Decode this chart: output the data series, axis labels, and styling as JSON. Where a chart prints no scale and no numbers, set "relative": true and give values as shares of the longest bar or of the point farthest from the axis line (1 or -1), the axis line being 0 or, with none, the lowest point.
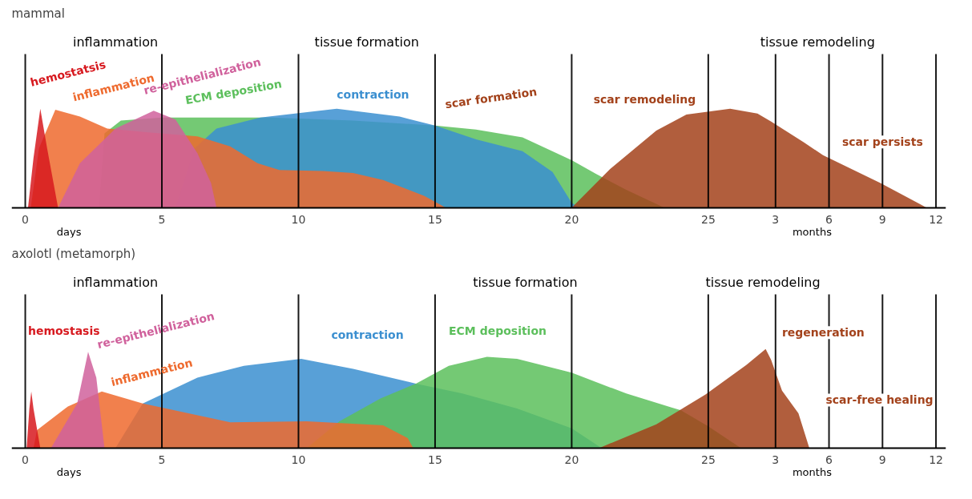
{
  "chart_data": [
    {
      "type": "area",
      "title": "mammal",
      "relative": true,
      "grid": "x",
      "xlim": [
        -0.5,
        33.7
      ],
      "xticks": [
        0,
        5,
        10,
        15,
        20,
        25
      ],
      "x2lim": [
        -39.85,
        12.56
      ],
      "x2ticks": [
        3,
        6,
        9,
        12
      ],
      "annotations": [
        "inflammation",
        "tissue formation",
        "tissue remodeling",
        "days",
        "months",
        "scar formation",
        "scar  persists"
      ],
      "series": [
        {
          "name": "ECM deposition",
          "color": "#5cbf5c",
          "x": [
            2.7,
            2.9,
            3.5,
            5,
            9,
            12,
            15,
            16.5,
            18.2,
            20,
            20.9,
            22,
            23.4
          ],
          "values": [
            0,
            0.75,
            0.88,
            0.91,
            0.91,
            0.88,
            0.83,
            0.79,
            0.71,
            0.48,
            0.34,
            0.18,
            0
          ]
        },
        {
          "name": "contraction",
          "color": "#3b8fd0",
          "x": [
            5.5,
            6.2,
            7,
            8.6,
            11.4,
            13.7,
            15,
            16.5,
            18.2,
            19.3,
            20,
            20.3
          ],
          "values": [
            0,
            0.6,
            0.8,
            0.91,
            1.0,
            0.92,
            0.83,
            0.69,
            0.57,
            0.36,
            0.05,
            0
          ]
        },
        {
          "name": "inflammation",
          "color": "#ee6a2e",
          "x": [
            0.2,
            0.5,
            1.1,
            2,
            3,
            4.5,
            6.3,
            7.5,
            8.5,
            9.3,
            10.9,
            12,
            13.1,
            14.6,
            15.4
          ],
          "values": [
            0,
            0.6,
            0.99,
            0.92,
            0.8,
            0.76,
            0.72,
            0.62,
            0.45,
            0.38,
            0.37,
            0.35,
            0.28,
            0.12,
            0
          ]
        },
        {
          "name": "re-epithelialization",
          "color": "#d0619c",
          "x": [
            1.2,
            2,
            3.3,
            4.7,
            5.5,
            6.3,
            6.8,
            7.0
          ],
          "values": [
            0,
            0.45,
            0.8,
            0.98,
            0.89,
            0.55,
            0.25,
            0
          ]
        },
        {
          "name": "hemostatsis",
          "color": "#d7191f",
          "x": [
            0.1,
            0.3,
            0.55,
            0.8,
            1.2
          ],
          "values": [
            0,
            0.5,
            1.0,
            0.6,
            0
          ]
        },
        {
          "name": "scar remodeling",
          "color": "#a3421b",
          "x": [
            20,
            21.4,
            23.1,
            24.2,
            25.8,
            26.8,
            27.3,
            28.5,
            29.2,
            31.3,
            33.0
          ],
          "values": [
            0,
            0.39,
            0.78,
            0.94,
            1.0,
            0.95,
            0.87,
            0.66,
            0.53,
            0.25,
            0
          ]
        }
      ]
    },
    {
      "type": "area",
      "title": "axolotl (metamorph)",
      "relative": true,
      "grid": "x",
      "xlim": [
        -0.5,
        33.7
      ],
      "xticks": [
        0,
        5,
        10,
        15,
        20,
        25
      ],
      "x2lim": [
        -39.85,
        12.56
      ],
      "x2ticks": [
        3,
        6,
        9,
        12
      ],
      "annotations": [
        "inflammation",
        "tissue formation",
        "tissue remodeling",
        "days",
        "months",
        "scar-free healing"
      ],
      "series": [
        {
          "name": "contraction",
          "color": "#3b8fd0",
          "x": [
            3.3,
            4.3,
            6.3,
            8,
            10.1,
            12,
            14.3,
            16,
            18,
            20,
            21.1
          ],
          "values": [
            0,
            0.45,
            0.71,
            0.83,
            0.9,
            0.8,
            0.65,
            0.55,
            0.4,
            0.2,
            0
          ]
        },
        {
          "name": "ECM deposition",
          "color": "#5cbf5c",
          "x": [
            10.3,
            11.5,
            13,
            14.3,
            15.5,
            16.9,
            18,
            20,
            22,
            24,
            25,
            26.2
          ],
          "values": [
            0,
            0.27,
            0.5,
            0.65,
            0.83,
            0.92,
            0.9,
            0.76,
            0.55,
            0.38,
            0.22,
            0
          ]
        },
        {
          "name": "inflammation",
          "color": "#ee6a2e",
          "x": [
            0.3,
            0.43,
            1.56,
            2.8,
            4.3,
            7.5,
            10.3,
            13.1,
            14.0,
            14.2
          ],
          "values": [
            0,
            0.18,
            0.42,
            0.57,
            0.45,
            0.26,
            0.27,
            0.23,
            0.1,
            0
          ]
        },
        {
          "name": "re-epithelialization",
          "color": "#d0619c",
          "x": [
            0.94,
            1.9,
            2.3,
            2.6,
            2.9
          ],
          "values": [
            0,
            0.45,
            0.97,
            0.71,
            0
          ]
        },
        {
          "name": "hemostasis",
          "color": "#d7191f",
          "x": [
            0.05,
            0.15,
            0.22,
            0.3,
            0.55
          ],
          "values": [
            0,
            0.4,
            0.57,
            0.4,
            0
          ]
        },
        {
          "name": "regeneration",
          "color": "#a3421b",
          "x": [
            21.0,
            23.1,
            24.9,
            26.4,
            27.1,
            27.3,
            27.7,
            28.3,
            28.7
          ],
          "values": [
            0,
            0.24,
            0.54,
            0.84,
            1.0,
            0.89,
            0.58,
            0.35,
            0
          ]
        }
      ]
    }
  ]
}
